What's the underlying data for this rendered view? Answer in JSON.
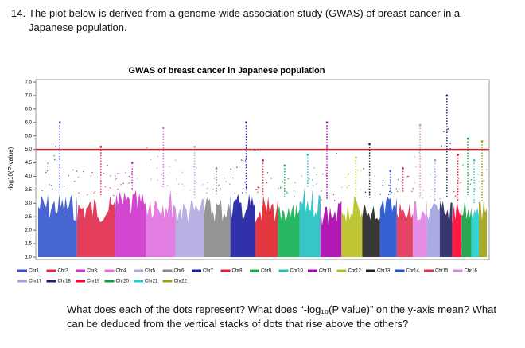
{
  "question": {
    "number": "14.",
    "text": "The plot below is derived from a genome-wide association study (GWAS) of breast cancer in a Japanese population."
  },
  "chart_data": {
    "type": "manhattan",
    "title": "GWAS of breast cancer in Japanese population",
    "y_label": "-log10(P-value)",
    "ylim": [
      1.0,
      7.5
    ],
    "yticks": [
      {
        "value": 1,
        "label": "1.0"
      },
      1.5,
      {
        "value": 2,
        "label": "2.0"
      },
      2.5,
      {
        "value": 3,
        "label": "3.0"
      },
      3.5,
      {
        "value": 4,
        "label": "4.0"
      },
      4.5,
      {
        "value": 5,
        "label": "5.0"
      },
      5.5,
      {
        "value": 6,
        "label": "6.0"
      },
      6.5,
      {
        "value": 7,
        "label": "7.0"
      },
      7.5
    ],
    "threshold": 5.0,
    "threshold_color": "#e02020",
    "categories": [
      "Chr1",
      "Chr2",
      "Chr3",
      "Chr4",
      "Chr5",
      "Chr6",
      "Chr7",
      "Chr8",
      "Chr9",
      "Chr10",
      "Chr11",
      "Chr12",
      "Chr13",
      "Chr14",
      "Chr15",
      "Chr16",
      "Chr17",
      "Chr18",
      "Chr19",
      "Chr20",
      "Chr21",
      "Chr22"
    ],
    "colors": [
      "#3355cc",
      "#e02a4a",
      "#cc33cc",
      "#e070e0",
      "#b0a8e0",
      "#8a8a8a",
      "#1a1aa0",
      "#e0202a",
      "#10b050",
      "#20c0c0",
      "#aa00aa",
      "#b8c020",
      "#222222",
      "#2050d0",
      "#e03050",
      "#e080e0",
      "#a0a0e0",
      "#202060",
      "#ff0030",
      "#10a040",
      "#20d0d0",
      "#a0a010"
    ],
    "peaks": [
      6.0,
      5.1,
      4.5,
      5.8,
      5.1,
      4.3,
      6.0,
      4.6,
      4.4,
      4.8,
      6.0,
      4.7,
      5.2,
      4.2,
      4.3,
      5.9,
      4.6,
      7.0,
      4.8,
      5.4,
      4.6,
      5.3
    ],
    "bulk": [
      3.4,
      3.3,
      3.5,
      3.6,
      3.2,
      3.3,
      3.4,
      3.3,
      3.2,
      3.6,
      3.1,
      3.3,
      3.2,
      3.3,
      3.4,
      3.2,
      3.1,
      3.2,
      3.1,
      3.3,
      3.0,
      3.1
    ]
  },
  "footer": {
    "text": "What does each of the dots represent? What does “-log₁₀(P value)” on the y-axis mean? What can be deduced from the vertical stacks of dots that rise above the others?"
  }
}
